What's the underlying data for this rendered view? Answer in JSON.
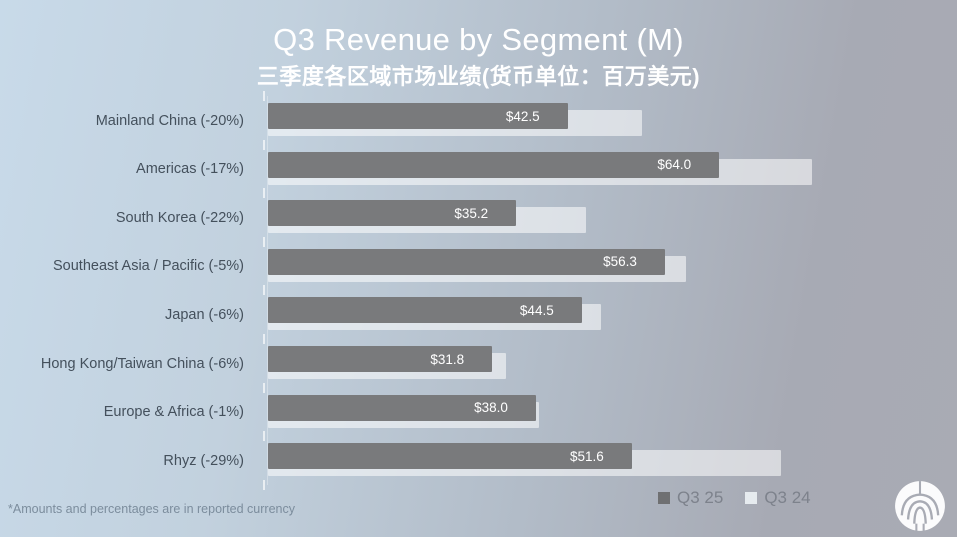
{
  "title": "Q3 Revenue by Segment (M)",
  "subtitle": "三季度各区域市场业绩(货币单位：百万美元)",
  "footnote": "*Amounts and percentages are in reported currency",
  "legend": {
    "items": [
      {
        "label": "Q3 25",
        "swatch": "#6f7072"
      },
      {
        "label": "Q3 24",
        "swatch": "#e6ebef"
      }
    ]
  },
  "colors": {
    "bar_current": "#797a7c",
    "bar_prior": "rgba(255,255,255,0.55)",
    "background_left": "#c8dae9",
    "background_right": "#a9abb4",
    "title_text": "#ffffff",
    "category_text": "#44505c",
    "value_text": "#ffffff",
    "legend_text": "#7d828c",
    "footnote_text": "#7c8d9d"
  },
  "logo_icon": "nu-skin-fountain-logo",
  "chart_data": {
    "type": "bar",
    "orientation": "horizontal",
    "title": "Q3 Revenue by Segment (M)",
    "subtitle": "三季度各区域市场业绩(货币单位：百万美元)",
    "value_unit": "USD millions",
    "categories": [
      "Mainland China (-20%)",
      "Americas (-17%)",
      "South Korea (-22%)",
      "Southeast Asia / Pacific (-5%)",
      "Japan (-6%)",
      "Hong Kong/Taiwan China (-6%)",
      "Europe & Africa (-1%)",
      "Rhyz (-29%)"
    ],
    "series": [
      {
        "name": "Q3 25",
        "color": "#797a7c",
        "values": [
          42.5,
          64.0,
          35.2,
          56.3,
          44.5,
          31.8,
          38.0,
          51.6
        ],
        "data_labels": [
          "$42.5",
          "$64.0",
          "$35.2",
          "$56.3",
          "$44.5",
          "$31.8",
          "$38.0",
          "$51.6"
        ],
        "data_labels_shown": true
      },
      {
        "name": "Q3 24",
        "color": "rgba(255,255,255,0.55)",
        "values": [
          53.1,
          77.1,
          45.1,
          59.3,
          47.3,
          33.8,
          38.4,
          72.7
        ],
        "data_labels_shown": false,
        "note": "values estimated from bar lengths and the percent changes shown in category labels"
      }
    ],
    "xlim": [
      0,
      95
    ],
    "grid": false,
    "data_labels_position": "inside-end",
    "legend_position": "bottom-right"
  }
}
